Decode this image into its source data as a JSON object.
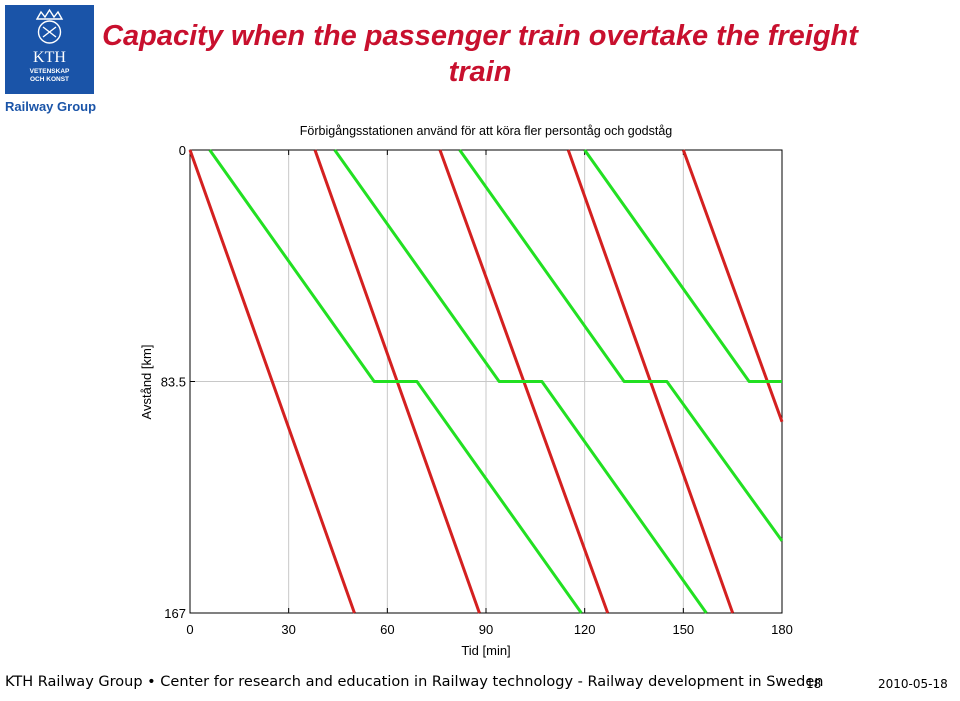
{
  "slide": {
    "title": "Capacity when the passenger train overtake the freight train",
    "logo_text": "KTH",
    "logo_subtext_1": "VETENSKAP",
    "logo_subtext_2": "OCH KONST",
    "group_label": "Railway Group",
    "footer": "KTH Railway Group • Center for research and education in Railway technology - Railway development in Sweden",
    "page_number": "18",
    "date": "2010-05-18"
  },
  "colors": {
    "title": "#c8102e",
    "kth_blue": "#1a54a8",
    "passenger": "#d42020",
    "freight": "#22e022"
  },
  "chart_data": {
    "type": "line",
    "title": "Förbigångsstationen använd för att köra fler persontåg och godståg",
    "xlabel": "Tid [min]",
    "ylabel": "Avstånd [km]",
    "xlim": [
      0,
      180
    ],
    "ylim": [
      0,
      167
    ],
    "y_inverted": true,
    "xticks": [
      0,
      30,
      60,
      90,
      120,
      150,
      180
    ],
    "yticks": [
      0,
      83.5,
      167
    ],
    "ytick_labels": [
      "0",
      "83.5",
      "167"
    ],
    "grid": true,
    "series": [
      {
        "color": "passenger",
        "x": [
          0,
          50
        ],
        "y": [
          0,
          167
        ]
      },
      {
        "color": "passenger",
        "x": [
          38,
          88
        ],
        "y": [
          0,
          167
        ]
      },
      {
        "color": "passenger",
        "x": [
          76,
          127
        ],
        "y": [
          0,
          167
        ]
      },
      {
        "color": "passenger",
        "x": [
          115,
          165
        ],
        "y": [
          0,
          167
        ]
      },
      {
        "color": "passenger",
        "x": [
          150,
          180
        ],
        "y": [
          0,
          98
        ]
      },
      {
        "color": "freight",
        "x": [
          6,
          56,
          69,
          119
        ],
        "y": [
          0,
          83.5,
          83.5,
          167
        ]
      },
      {
        "color": "freight",
        "x": [
          44,
          94,
          107,
          157
        ],
        "y": [
          0,
          83.5,
          83.5,
          167
        ]
      },
      {
        "color": "freight",
        "x": [
          82,
          132,
          145,
          180
        ],
        "y": [
          0,
          83.5,
          83.5,
          141
        ]
      },
      {
        "color": "freight",
        "x": [
          120,
          170,
          180
        ],
        "y": [
          0,
          83.5,
          83.5
        ]
      }
    ]
  }
}
